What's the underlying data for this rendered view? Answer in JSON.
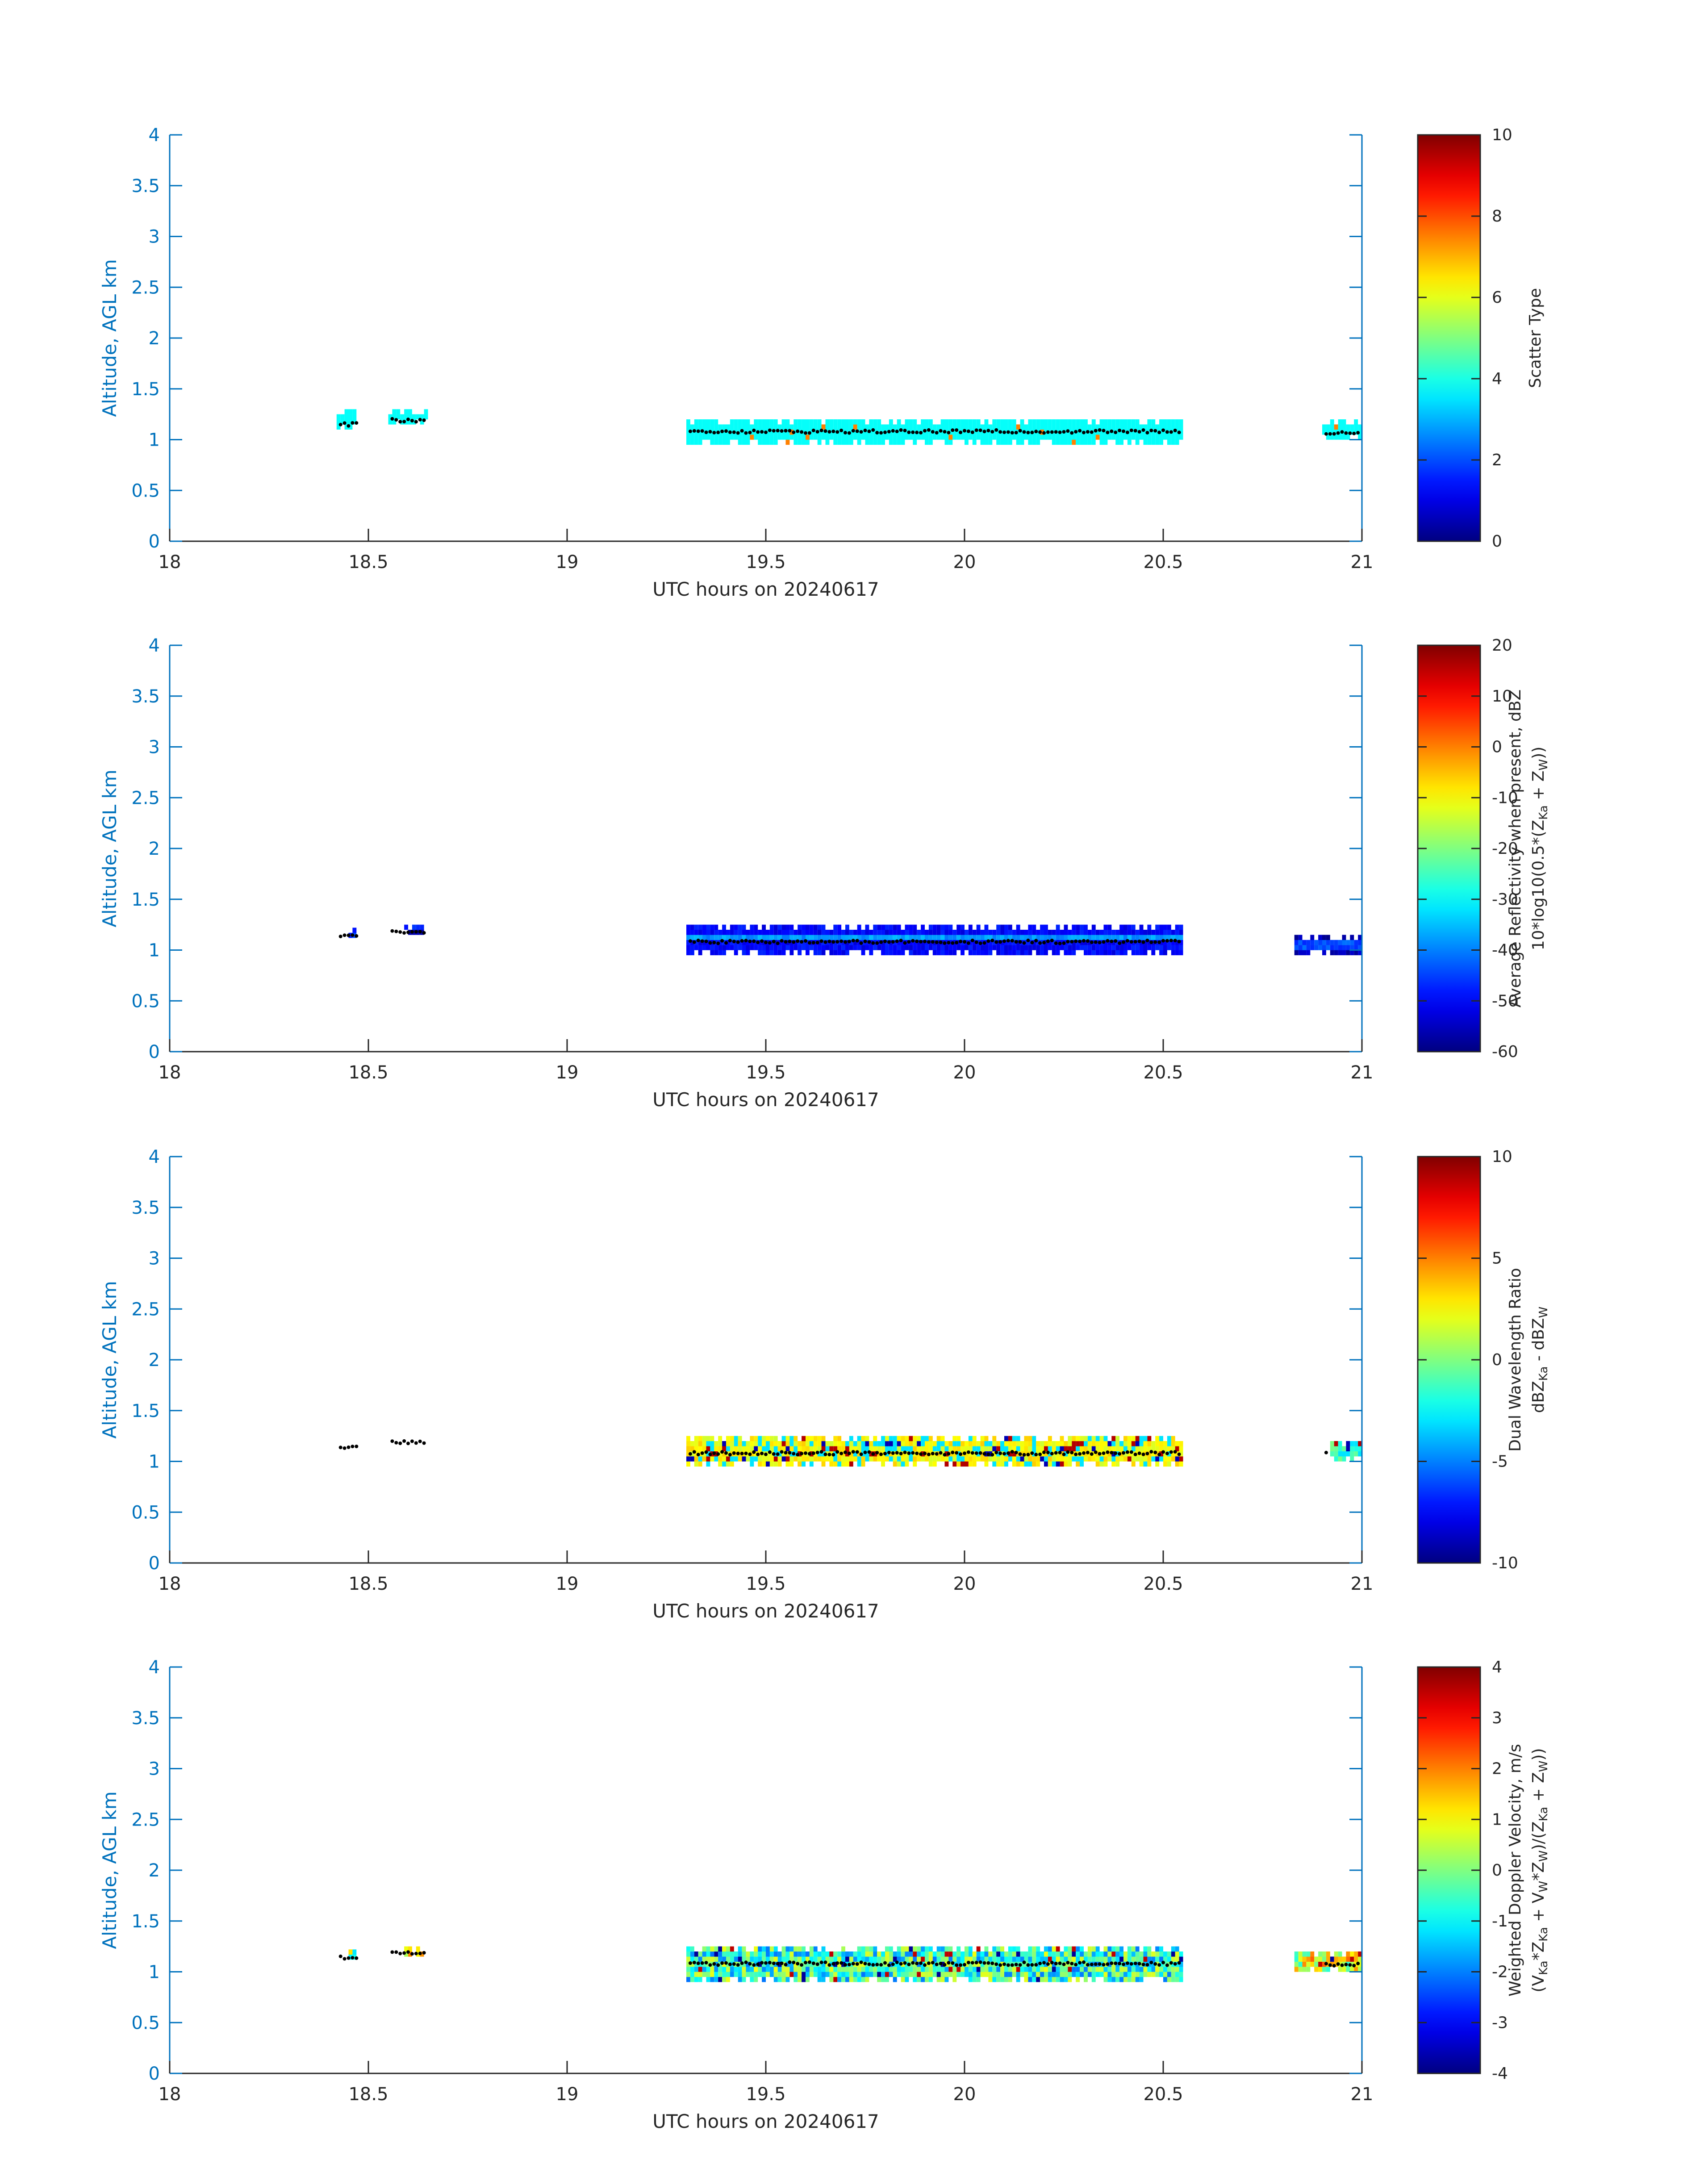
{
  "chart_data": [
    {
      "type": "heatmap",
      "title": "",
      "xlabel": "UTC hours on 20240617",
      "ylabel": "Altitude, AGL km",
      "xlim": [
        18,
        21
      ],
      "ylim": [
        0,
        4
      ],
      "xticks": [
        "18",
        "18.5",
        "19",
        "19.5",
        "20",
        "20.5",
        "21"
      ],
      "yticks": [
        "0",
        "0.5",
        "1",
        "1.5",
        "2",
        "2.5",
        "3",
        "3.5",
        "4"
      ],
      "colorbar": {
        "label_lines": [
          [
            "Scatter Type"
          ]
        ],
        "clim": [
          0,
          10
        ],
        "ticks": [
          "0",
          "2",
          "4",
          "6",
          "8",
          "10"
        ]
      },
      "segments": [
        {
          "x": [
            18.42,
            18.47
          ],
          "y": [
            1.1,
            1.3
          ],
          "value": 3.8
        },
        {
          "x": [
            18.55,
            18.65
          ],
          "y": [
            1.15,
            1.3
          ],
          "value": 3.8
        },
        {
          "x": [
            19.3,
            20.55
          ],
          "y": [
            0.95,
            1.2
          ],
          "value": 3.8
        },
        {
          "x": [
            20.9,
            21.0
          ],
          "y": [
            1.0,
            1.2
          ],
          "value": 3.8
        }
      ],
      "cloud_base_km": [
        {
          "x": [
            18.43,
            18.47
          ],
          "y": 1.15
        },
        {
          "x": [
            18.56,
            18.64
          ],
          "y": 1.19
        },
        {
          "x": [
            19.31,
            20.54
          ],
          "y": 1.08
        },
        {
          "x": [
            20.91,
            20.99
          ],
          "y": 1.07
        }
      ]
    },
    {
      "type": "heatmap",
      "title": "",
      "xlabel": "UTC hours on 20240617",
      "ylabel": "Altitude, AGL km",
      "xlim": [
        18,
        21
      ],
      "ylim": [
        0,
        4
      ],
      "xticks": [
        "18",
        "18.5",
        "19",
        "19.5",
        "20",
        "20.5",
        "21"
      ],
      "yticks": [
        "0",
        "0.5",
        "1",
        "1.5",
        "2",
        "2.5",
        "3",
        "3.5",
        "4"
      ],
      "colorbar": {
        "label_lines": [
          [
            "Average Reflectivity when present, dBZ"
          ],
          [
            "10*log10(0.5*(Z",
            {
              "sub": "Ka"
            },
            " + Z",
            {
              "sub": "W"
            },
            "))"
          ]
        ],
        "clim": [
          -60,
          20
        ],
        "ticks": [
          "-60",
          "-50",
          "-40",
          "-30",
          "-20",
          "-10",
          "0",
          "10",
          "20"
        ]
      },
      "segments": [
        {
          "x": [
            18.45,
            18.47
          ],
          "y": [
            1.12,
            1.18
          ],
          "value": -58
        },
        {
          "x": [
            18.59,
            18.64
          ],
          "y": [
            1.15,
            1.25
          ],
          "value": -58
        },
        {
          "x": [
            19.3,
            20.55
          ],
          "y": [
            0.95,
            1.25
          ],
          "value": -50
        },
        {
          "x": [
            20.83,
            21.0
          ],
          "y": [
            0.95,
            1.15
          ],
          "value": -56
        }
      ],
      "cloud_base_km": [
        {
          "x": [
            18.43,
            18.47
          ],
          "y": 1.14
        },
        {
          "x": [
            18.56,
            18.64
          ],
          "y": 1.18
        },
        {
          "x": [
            19.31,
            20.54
          ],
          "y": 1.08
        }
      ]
    },
    {
      "type": "heatmap",
      "title": "",
      "xlabel": "UTC hours on 20240617",
      "ylabel": "Altitude, AGL km",
      "xlim": [
        18,
        21
      ],
      "ylim": [
        0,
        4
      ],
      "xticks": [
        "18",
        "18.5",
        "19",
        "19.5",
        "20",
        "20.5",
        "21"
      ],
      "yticks": [
        "0",
        "0.5",
        "1",
        "1.5",
        "2",
        "2.5",
        "3",
        "3.5",
        "4"
      ],
      "colorbar": {
        "label_lines": [
          [
            "Dual Wavelength Ratio"
          ],
          [
            "dBZ",
            {
              "sub": "Ka"
            },
            " - dBZ",
            {
              "sub": "W"
            }
          ]
        ],
        "clim": [
          -10,
          10
        ],
        "ticks": [
          "-10",
          "-5",
          "0",
          "5",
          "10"
        ]
      },
      "segments": [
        {
          "x": [
            19.3,
            20.55
          ],
          "y": [
            0.95,
            1.25
          ],
          "value": 2.5
        },
        {
          "x": [
            20.92,
            21.0
          ],
          "y": [
            1.0,
            1.2
          ],
          "value": -1
        }
      ],
      "cloud_base_km": [
        {
          "x": [
            18.43,
            18.47
          ],
          "y": 1.14
        },
        {
          "x": [
            18.56,
            18.64
          ],
          "y": 1.19
        },
        {
          "x": [
            19.31,
            20.54
          ],
          "y": 1.08
        },
        {
          "x": [
            20.91,
            20.91
          ],
          "y": 1.1
        }
      ]
    },
    {
      "type": "heatmap",
      "title": "",
      "xlabel": "UTC hours on 20240617",
      "ylabel": "Altitude, AGL km",
      "xlim": [
        18,
        21
      ],
      "ylim": [
        0,
        4
      ],
      "xticks": [
        "18",
        "18.5",
        "19",
        "19.5",
        "20",
        "20.5",
        "21"
      ],
      "yticks": [
        "0",
        "0.5",
        "1",
        "1.5",
        "2",
        "2.5",
        "3",
        "3.5",
        "4"
      ],
      "colorbar": {
        "label_lines": [
          [
            "Weighted Doppler Velocity, m/s"
          ],
          [
            "(V",
            {
              "sub": "Ka"
            },
            "*Z",
            {
              "sub": "Ka"
            },
            " + V",
            {
              "sub": "W"
            },
            "*Z",
            {
              "sub": "W"
            },
            ")/(Z",
            {
              "sub": "Ka"
            },
            " + Z",
            {
              "sub": "W"
            },
            "))"
          ]
        ],
        "clim": [
          -4,
          4
        ],
        "ticks": [
          "-4",
          "-3",
          "-2",
          "-1",
          "0",
          "1",
          "2",
          "3",
          "4"
        ]
      },
      "segments": [
        {
          "x": [
            18.45,
            18.47
          ],
          "y": [
            1.12,
            1.18
          ],
          "value": -0.5
        },
        {
          "x": [
            18.59,
            18.64
          ],
          "y": [
            1.15,
            1.25
          ],
          "value": 0.3
        },
        {
          "x": [
            19.3,
            20.55
          ],
          "y": [
            0.9,
            1.25
          ],
          "value": -1.2
        },
        {
          "x": [
            20.83,
            21.0
          ],
          "y": [
            1.0,
            1.2
          ],
          "value": 0.2
        }
      ],
      "cloud_base_km": [
        {
          "x": [
            18.43,
            18.47
          ],
          "y": 1.14
        },
        {
          "x": [
            18.56,
            18.64
          ],
          "y": 1.19
        },
        {
          "x": [
            19.31,
            20.54
          ],
          "y": 1.08
        },
        {
          "x": [
            20.91,
            20.99
          ],
          "y": 1.07
        }
      ]
    }
  ]
}
